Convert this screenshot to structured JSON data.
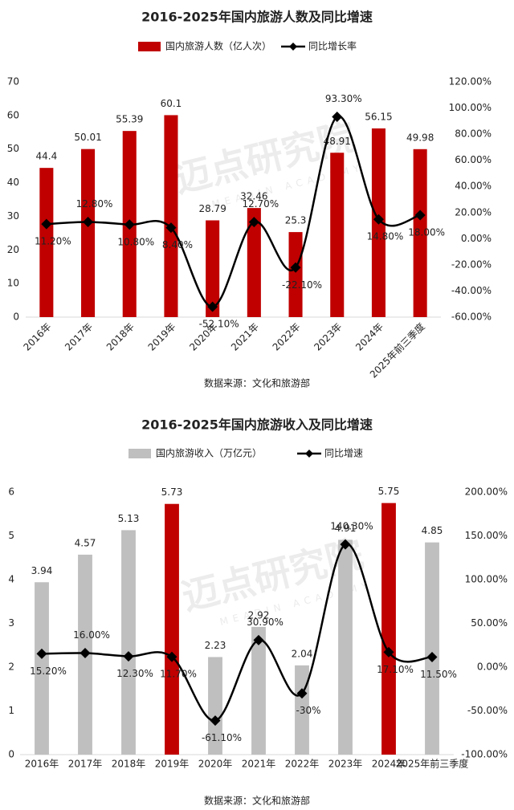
{
  "watermark": "迈点研究院",
  "watermark_en": "MEADIN ACADEMY",
  "chart_data": [
    {
      "type": "bar-line",
      "title": "2016-2025年国内旅游人数及同比增速",
      "source": "数据来源：文化和旅游部",
      "categories": [
        "2016年",
        "2017年",
        "2018年",
        "2019年",
        "2020年",
        "2021年",
        "2022年",
        "2023年",
        "2024年",
        "2025年前三季度"
      ],
      "series": [
        {
          "name": "国内旅游人数（亿人次）",
          "type": "bar",
          "color": "#c00000",
          "values": [
            44.4,
            50.01,
            55.39,
            60.1,
            28.79,
            32.46,
            25.3,
            48.91,
            56.15,
            49.98
          ]
        },
        {
          "name": "同比增长率",
          "type": "line",
          "axis": "y2",
          "color": "#000000",
          "values": [
            11.2,
            12.8,
            10.8,
            8.4,
            -52.1,
            12.7,
            -22.1,
            93.3,
            14.8,
            18.0
          ],
          "value_labels": [
            "11.20%",
            "12.80%",
            "10.80%",
            "8.40%",
            "-52.10%",
            "12.70%",
            "-22.10%",
            "93.30%",
            "14.80%",
            "18.00%"
          ]
        }
      ],
      "ylim": [
        0,
        70
      ],
      "yticks": [
        0,
        10,
        20,
        30,
        40,
        50,
        60,
        70
      ],
      "y2lim": [
        -60,
        120
      ],
      "y2ticks": [
        {
          "value": -60,
          "label": "-60.00%"
        },
        {
          "value": -40,
          "label": "-40.00%"
        },
        {
          "value": -20,
          "label": "-20.00%"
        },
        {
          "value": 0,
          "label": "0.00%"
        },
        {
          "value": 20,
          "label": "20.00%"
        },
        {
          "value": 40,
          "label": "40.00%"
        },
        {
          "value": 60,
          "label": "60.00%"
        },
        {
          "value": 80,
          "label": "80.00%"
        },
        {
          "value": 100,
          "label": "100.00%"
        },
        {
          "value": 120,
          "label": "120.00%"
        }
      ],
      "legend": "top",
      "grid": false
    },
    {
      "type": "bar-line",
      "title": "2016-2025年国内旅游收入及同比增速",
      "source": "数据来源：文化和旅游部",
      "categories": [
        "2016年",
        "2017年",
        "2018年",
        "2019年",
        "2020年",
        "2021年",
        "2022年",
        "2023年",
        "2024年",
        "2025年前三季度"
      ],
      "series": [
        {
          "name": "国内旅游收入（万亿元）",
          "type": "bar",
          "color": "#bfbfbf",
          "colors": [
            "#bfbfbf",
            "#bfbfbf",
            "#bfbfbf",
            "#c00000",
            "#bfbfbf",
            "#bfbfbf",
            "#bfbfbf",
            "#bfbfbf",
            "#c00000",
            "#bfbfbf"
          ],
          "values": [
            3.94,
            4.57,
            5.13,
            5.73,
            2.23,
            2.92,
            2.04,
            4.91,
            5.75,
            4.85
          ]
        },
        {
          "name": "同比增速",
          "type": "line",
          "axis": "y2",
          "color": "#000000",
          "values": [
            15.2,
            16.0,
            12.3,
            11.7,
            -61.1,
            30.9,
            -30,
            140.3,
            17.1,
            11.5
          ],
          "value_labels": [
            "15.20%",
            "16.00%",
            "12.30%",
            "11.70%",
            "-61.10%",
            "30.90%",
            "-30%",
            "140.30%",
            "17.10%",
            "11.50%"
          ]
        }
      ],
      "ylim": [
        0,
        6
      ],
      "yticks": [
        0,
        1,
        2,
        3,
        4,
        5,
        6
      ],
      "y2lim": [
        -100,
        200
      ],
      "y2ticks": [
        {
          "value": -100,
          "label": "-100.00%"
        },
        {
          "value": -50,
          "label": "-50.00%"
        },
        {
          "value": 0,
          "label": "0.00%"
        },
        {
          "value": 50,
          "label": "50.00%"
        },
        {
          "value": 100,
          "label": "100.00%"
        },
        {
          "value": 150,
          "label": "150.00%"
        },
        {
          "value": 200,
          "label": "200.00%"
        }
      ],
      "legend": "top",
      "grid": false
    }
  ]
}
